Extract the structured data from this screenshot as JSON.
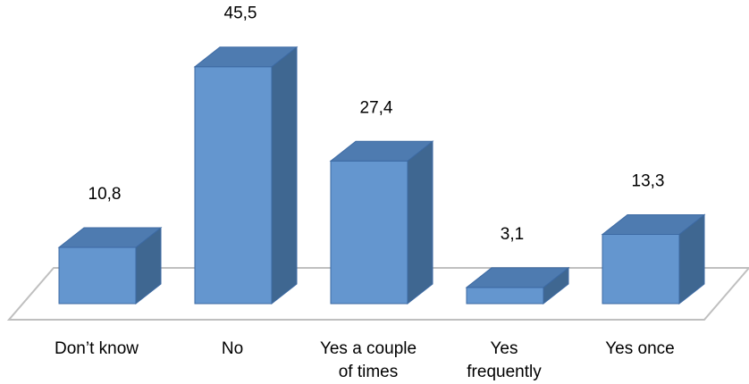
{
  "chart_data": {
    "type": "bar",
    "style": "3d-column",
    "categories": [
      "Don’t know",
      "No",
      "Yes a couple of times",
      "Yes frequently",
      "Yes once"
    ],
    "category_label_lines": [
      [
        "Don’t know"
      ],
      [
        "No"
      ],
      [
        "Yes a couple",
        "of times"
      ],
      [
        "Yes",
        "frequently"
      ],
      [
        "Yes once"
      ]
    ],
    "values": [
      10.8,
      45.5,
      27.4,
      3.1,
      13.3
    ],
    "value_labels": [
      "10,8",
      "45,5",
      "27,4",
      "3,1",
      "13,3"
    ],
    "title": "",
    "xlabel": "",
    "ylabel": "",
    "ylim": [
      0,
      50
    ],
    "grid": false,
    "legend": "none",
    "colors": {
      "front": "#6496CF",
      "side": "#3F6791",
      "top": "#4E7BB0",
      "edge": "#3D6AA3",
      "floor": "#BFBFBF"
    }
  }
}
